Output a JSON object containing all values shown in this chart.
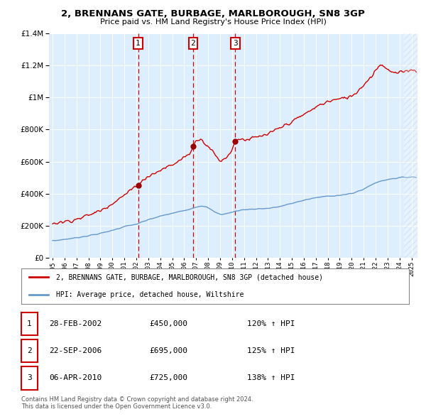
{
  "title1": "2, BRENNANS GATE, BURBAGE, MARLBOROUGH, SN8 3GP",
  "title2": "Price paid vs. HM Land Registry's House Price Index (HPI)",
  "plot_bg_color": "#ddeeff",
  "grid_color": "#ffffff",
  "hpi_line_color": "#6699cc",
  "price_line_color": "#cc0000",
  "marker_color": "#990000",
  "vline_color": "#cc0000",
  "sales": [
    {
      "num": 1,
      "date_x": 2002.15,
      "price": 450000
    },
    {
      "num": 2,
      "date_x": 2006.73,
      "price": 695000
    },
    {
      "num": 3,
      "date_x": 2010.27,
      "price": 725000
    }
  ],
  "legend_entries": [
    "2, BRENNANS GATE, BURBAGE, MARLBOROUGH, SN8 3GP (detached house)",
    "HPI: Average price, detached house, Wiltshire"
  ],
  "table_rows": [
    [
      "1",
      "28-FEB-2002",
      "£450,000",
      "120% ↑ HPI"
    ],
    [
      "2",
      "22-SEP-2006",
      "£695,000",
      "125% ↑ HPI"
    ],
    [
      "3",
      "06-APR-2010",
      "£725,000",
      "138% ↑ HPI"
    ]
  ],
  "footer": "Contains HM Land Registry data © Crown copyright and database right 2024.\nThis data is licensed under the Open Government Licence v3.0.",
  "ylim": [
    0,
    1400000
  ],
  "xlim_start": 1994.7,
  "xlim_end": 2025.5,
  "yticks": [
    0,
    200000,
    400000,
    600000,
    800000,
    1000000,
    1200000,
    1400000
  ]
}
